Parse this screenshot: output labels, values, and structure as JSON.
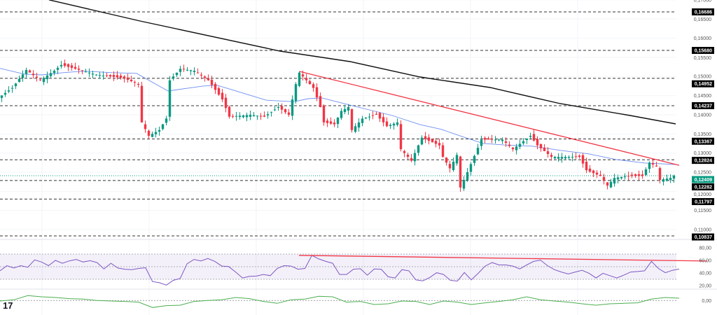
{
  "chart_data": {
    "type": "candlestick",
    "title": "",
    "price_axis": {
      "ylim": [
        0.105,
        0.17
      ],
      "tick_labels": [
        "0,17000",
        "0,16500",
        "0,16000",
        "0,15500",
        "0,15000",
        "0,14500",
        "0,14000",
        "0,13500",
        "0,13000",
        "0,12500",
        "0,12000",
        "0,11500",
        "0,11000"
      ],
      "tick_values": [
        0.17,
        0.165,
        0.16,
        0.155,
        0.15,
        0.145,
        0.14,
        0.135,
        0.13,
        0.125,
        0.12,
        0.115,
        0.11
      ]
    },
    "xlim": [
      0,
      200
    ],
    "levels": [
      {
        "value": 0.16686,
        "label": "0,16686"
      },
      {
        "value": 0.1568,
        "label": "0,15680"
      },
      {
        "value": 0.14952,
        "label": "0,14952"
      },
      {
        "value": 0.14237,
        "label": "0,14237"
      },
      {
        "value": 0.13367,
        "label": "0,13367"
      },
      {
        "value": 0.12824,
        "label": "0,12824"
      },
      {
        "value": 0.12282,
        "label": "0,12282"
      },
      {
        "value": 0.11797,
        "label": "0,11797"
      },
      {
        "value": 0.10837,
        "label": "0,10837"
      }
    ],
    "current_price": {
      "value": 0.12409,
      "label": "0,12409"
    },
    "close_anchors": [
      [
        0,
        0.1444
      ],
      [
        4,
        0.147
      ],
      [
        8,
        0.1517
      ],
      [
        12,
        0.149
      ],
      [
        16,
        0.1515
      ],
      [
        18,
        0.153
      ],
      [
        22,
        0.152
      ],
      [
        28,
        0.1505
      ],
      [
        32,
        0.15
      ],
      [
        36,
        0.1495
      ],
      [
        40,
        0.148
      ],
      [
        41,
        0.138
      ],
      [
        43,
        0.1345
      ],
      [
        46,
        0.136
      ],
      [
        48,
        0.139
      ],
      [
        49,
        0.149
      ],
      [
        52,
        0.152
      ],
      [
        56,
        0.1515
      ],
      [
        60,
        0.149
      ],
      [
        64,
        0.144
      ],
      [
        66,
        0.1395
      ],
      [
        72,
        0.14
      ],
      [
        76,
        0.1395
      ],
      [
        80,
        0.142
      ],
      [
        83,
        0.14
      ],
      [
        85,
        0.148
      ],
      [
        86,
        0.151
      ],
      [
        90,
        0.147
      ],
      [
        92,
        0.142
      ],
      [
        93,
        0.138
      ],
      [
        96,
        0.1375
      ],
      [
        98,
        0.141
      ],
      [
        100,
        0.142
      ],
      [
        101,
        0.136
      ],
      [
        104,
        0.139
      ],
      [
        108,
        0.14
      ],
      [
        111,
        0.137
      ],
      [
        114,
        0.138
      ],
      [
        115,
        0.131
      ],
      [
        118,
        0.128
      ],
      [
        121,
        0.134
      ],
      [
        126,
        0.132
      ],
      [
        127,
        0.129
      ],
      [
        129,
        0.126
      ],
      [
        131,
        0.1295
      ],
      [
        132,
        0.121
      ],
      [
        134,
        0.125
      ],
      [
        138,
        0.1335
      ],
      [
        144,
        0.1335
      ],
      [
        147,
        0.131
      ],
      [
        152,
        0.1345
      ],
      [
        154,
        0.132
      ],
      [
        158,
        0.129
      ],
      [
        162,
        0.129
      ],
      [
        166,
        0.129
      ],
      [
        168,
        0.1255
      ],
      [
        172,
        0.124
      ],
      [
        174,
        0.1215
      ],
      [
        176,
        0.1235
      ],
      [
        180,
        0.124
      ],
      [
        184,
        0.124
      ],
      [
        186,
        0.1275
      ],
      [
        188,
        0.1265
      ],
      [
        189,
        0.123
      ],
      [
        192,
        0.1235
      ],
      [
        193,
        0.12409
      ]
    ],
    "series": [
      {
        "name": "MA 50 (blue)",
        "color": "#6f8ff0",
        "points": [
          [
            0,
            0.1521
          ],
          [
            7,
            0.1506
          ],
          [
            12,
            0.1504
          ],
          [
            18,
            0.151
          ],
          [
            24,
            0.1514
          ],
          [
            32,
            0.151
          ],
          [
            39,
            0.1508
          ],
          [
            48,
            0.1462
          ],
          [
            58,
            0.1475
          ],
          [
            62,
            0.1477
          ],
          [
            66,
            0.1466
          ],
          [
            76,
            0.1438
          ],
          [
            84,
            0.1434
          ],
          [
            88,
            0.1442
          ],
          [
            92,
            0.1444
          ],
          [
            100,
            0.1425
          ],
          [
            112,
            0.1398
          ],
          [
            120,
            0.1374
          ],
          [
            126,
            0.1362
          ],
          [
            132,
            0.1343
          ],
          [
            138,
            0.1325
          ],
          [
            144,
            0.1321
          ],
          [
            152,
            0.1318
          ],
          [
            160,
            0.1307
          ],
          [
            168,
            0.1298
          ],
          [
            176,
            0.1283
          ],
          [
            184,
            0.1274
          ],
          [
            193,
            0.127
          ]
        ]
      },
      {
        "name": "MA 200 (black)",
        "color": "#111111",
        "points": [
          [
            14,
            0.17
          ],
          [
            40,
            0.16448
          ],
          [
            80,
            0.15662
          ],
          [
            100,
            0.15388
          ],
          [
            120,
            0.14986
          ],
          [
            140,
            0.14712
          ],
          [
            160,
            0.14291
          ],
          [
            180,
            0.1398
          ],
          [
            193,
            0.13761
          ]
        ]
      },
      {
        "name": "Downtrend line",
        "color": "#f23645",
        "points": [
          [
            85.6,
            0.1513
          ],
          [
            194,
            0.1268
          ]
        ]
      }
    ],
    "rsi": {
      "tick_labels": [
        "80,00",
        "60,00",
        "40,00",
        "20,00"
      ],
      "tick_values": [
        80,
        60,
        40,
        20
      ],
      "band": [
        30,
        70
      ],
      "ylim": [
        0,
        100
      ],
      "values": [
        43.4,
        51.7,
        47.9,
        51.7,
        49.1,
        60.8,
        57.4,
        51.7,
        60,
        55.5,
        59.2,
        61.5,
        57.4,
        59.6,
        56.6,
        46.4,
        55.5,
        47.9,
        46,
        45.3,
        47.2,
        48.3,
        26.4,
        24.6,
        20.8,
        28.3,
        31.3,
        54.7,
        61.5,
        59.2,
        63,
        58.5,
        51,
        50.2,
        41.5,
        32.1,
        34.7,
        35.1,
        37.7,
        35.8,
        47.2,
        51.7,
        51,
        46,
        47.2,
        67.9,
        62.3,
        58.5,
        55.5,
        37.7,
        37.7,
        46,
        46.8,
        36.6,
        46.4,
        46,
        34,
        32.1,
        45.3,
        43.4,
        29.1,
        27.6,
        32.9,
        40.4,
        37.7,
        28.3,
        27.2,
        40.8,
        29.1,
        39.6,
        51,
        56.6,
        52.8,
        52.8,
        51,
        46.4,
        52.8,
        58.5,
        60.4,
        51.7,
        45.3,
        41.5,
        38.5,
        41.5,
        44.2,
        39.6,
        32.1,
        39.6,
        35.8,
        32.1,
        36.6,
        41.5,
        42.3,
        43.4,
        58.5,
        47.2,
        40.4,
        44.2,
        46.4
      ],
      "trendline": [
        68,
        59
      ]
    },
    "oscillator": {
      "tick_labels": [
        "0,00"
      ],
      "values": [
        -0.7,
        1,
        7,
        5.3,
        4.3,
        2.7,
        2,
        0,
        -0.7,
        -1.3,
        -2.3,
        -10,
        -7.3,
        -6.7,
        -1.3,
        0,
        1,
        4.3,
        2.7,
        -1.3,
        -4,
        1,
        2,
        6,
        5.3,
        -2.3,
        -1.3,
        -5.7,
        -4.7,
        -0.7,
        -1.3,
        -5.7,
        -0.7,
        -2.3,
        -5.7,
        -3.3,
        -1.3,
        1,
        5.3,
        1,
        -0.7,
        -2.3,
        -4.7,
        -6.7,
        -4.7,
        -4,
        -3.3,
        2,
        4.3,
        3.3
      ]
    },
    "logo": "TV"
  },
  "colors": {
    "up": "#089981",
    "down": "#f23645",
    "rsi": "#7e57c2",
    "osc": "#4caf50",
    "trend": "#f23645"
  }
}
